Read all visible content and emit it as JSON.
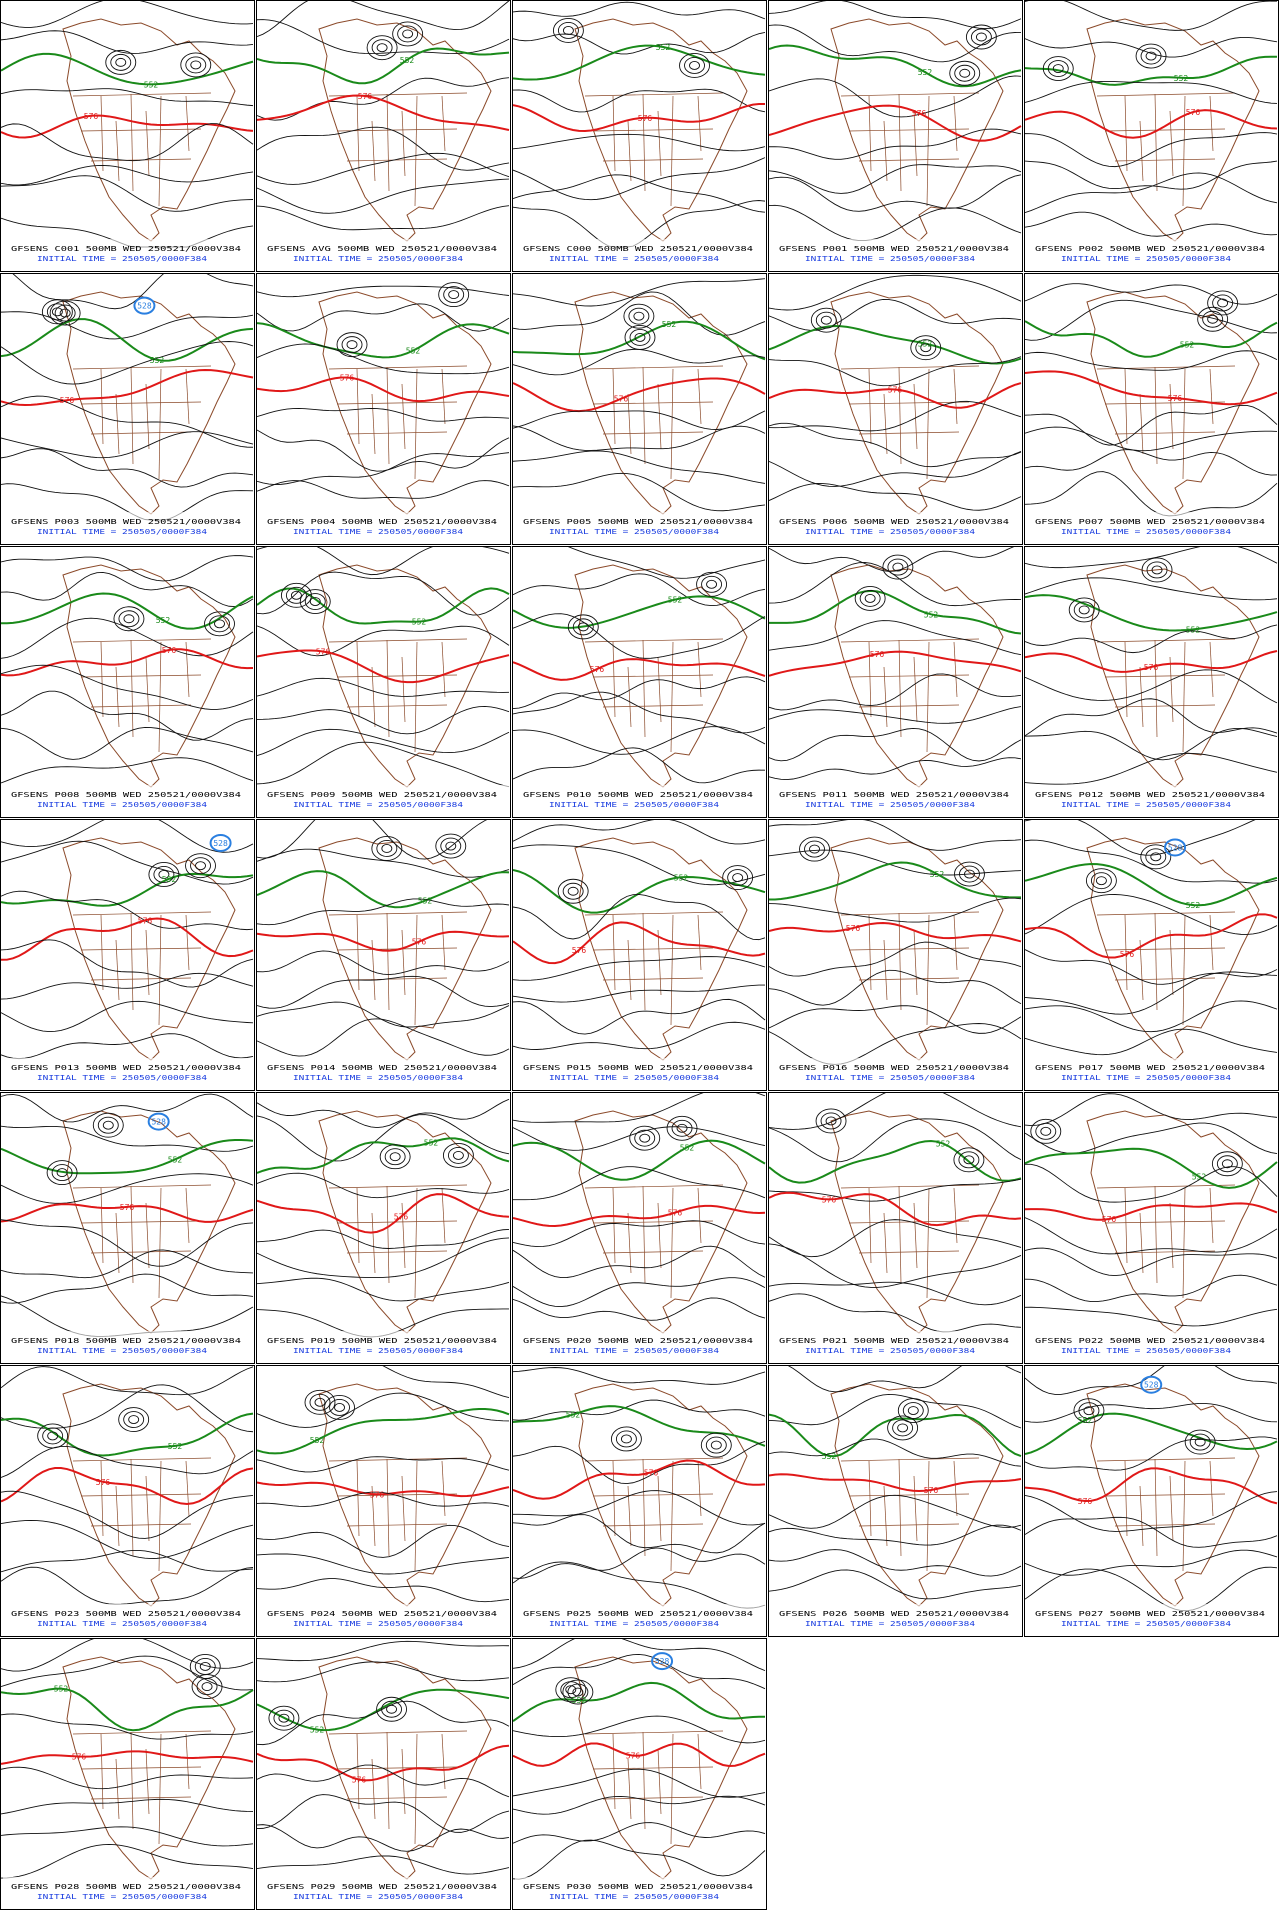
{
  "panels": [
    {
      "title": "GFSENS C001 500MB WED 250521/0000V384",
      "initial_time": "INITIAL TIME = 250505/0000F384",
      "contour_labels": [
        "552",
        "576"
      ]
    },
    {
      "title": "GFSENS AVG 500MB WED 250521/0000V384",
      "initial_time": "INITIAL TIME = 250505/0000F384",
      "contour_labels": [
        "552",
        "576"
      ]
    },
    {
      "title": "GFSENS C000 500MB WED 250521/0000V384",
      "initial_time": "INITIAL TIME = 250505/0000F384",
      "contour_labels": [
        "552",
        "576"
      ]
    },
    {
      "title": "GFSENS P001 500MB WED 250521/0000V384",
      "initial_time": "INITIAL TIME = 250505/0000F384",
      "contour_labels": [
        "552",
        "576"
      ]
    },
    {
      "title": "GFSENS P002 500MB WED 250521/0000V384",
      "initial_time": "INITIAL TIME = 250505/0000F384",
      "contour_labels": [
        "552",
        "576"
      ]
    },
    {
      "title": "GFSENS P003 500MB WED 250521/0000V384",
      "initial_time": "INITIAL TIME = 250505/0000F384",
      "contour_labels": [
        "552",
        "576",
        "528"
      ]
    },
    {
      "title": "GFSENS P004 500MB WED 250521/0000V384",
      "initial_time": "INITIAL TIME = 250505/0000F384",
      "contour_labels": [
        "552",
        "576"
      ]
    },
    {
      "title": "GFSENS P005 500MB WED 250521/0000V384",
      "initial_time": "INITIAL TIME = 250505/0000F384",
      "contour_labels": [
        "552",
        "576"
      ]
    },
    {
      "title": "GFSENS P006 500MB WED 250521/0000V384",
      "initial_time": "INITIAL TIME = 250505/0000F384",
      "contour_labels": [
        "552",
        "576"
      ]
    },
    {
      "title": "GFSENS P007 500MB WED 250521/0000V384",
      "initial_time": "INITIAL TIME = 250505/0000F384",
      "contour_labels": [
        "552",
        "576"
      ]
    },
    {
      "title": "GFSENS P008 500MB WED 250521/0000V384",
      "initial_time": "INITIAL TIME = 250505/0000F384",
      "contour_labels": [
        "552",
        "576"
      ]
    },
    {
      "title": "GFSENS P009 500MB WED 250521/0000V384",
      "initial_time": "INITIAL TIME = 250505/0000F384",
      "contour_labels": [
        "552",
        "576"
      ]
    },
    {
      "title": "GFSENS P010 500MB WED 250521/0000V384",
      "initial_time": "INITIAL TIME = 250505/0000F384",
      "contour_labels": [
        "552",
        "576"
      ]
    },
    {
      "title": "GFSENS P011 500MB WED 250521/0000V384",
      "initial_time": "INITIAL TIME = 250505/0000F384",
      "contour_labels": [
        "552",
        "576"
      ]
    },
    {
      "title": "GFSENS P012 500MB WED 250521/0000V384",
      "initial_time": "INITIAL TIME = 250505/0000F384",
      "contour_labels": [
        "552",
        "576"
      ]
    },
    {
      "title": "GFSENS P013 500MB WED 250521/0000V384",
      "initial_time": "INITIAL TIME = 250505/0000F384",
      "contour_labels": [
        "552",
        "576",
        "528"
      ]
    },
    {
      "title": "GFSENS P014 500MB WED 250521/0000V384",
      "initial_time": "INITIAL TIME = 250505/0000F384",
      "contour_labels": [
        "552",
        "576"
      ]
    },
    {
      "title": "GFSENS P015 500MB WED 250521/0000V384",
      "initial_time": "INITIAL TIME = 250505/0000F384",
      "contour_labels": [
        "552",
        "576"
      ]
    },
    {
      "title": "GFSENS P016 500MB WED 250521/0000V384",
      "initial_time": "INITIAL TIME = 250505/0000F384",
      "contour_labels": [
        "552",
        "576"
      ]
    },
    {
      "title": "GFSENS P017 500MB WED 250521/0000V384",
      "initial_time": "INITIAL TIME = 250505/0000F384",
      "contour_labels": [
        "552",
        "576",
        "528"
      ]
    },
    {
      "title": "GFSENS P018 500MB WED 250521/0000V384",
      "initial_time": "INITIAL TIME = 250505/0000F384",
      "contour_labels": [
        "552",
        "576",
        "528"
      ]
    },
    {
      "title": "GFSENS P019 500MB WED 250521/0000V384",
      "initial_time": "INITIAL TIME = 250505/0000F384",
      "contour_labels": [
        "552",
        "576"
      ]
    },
    {
      "title": "GFSENS P020 500MB WED 250521/0000V384",
      "initial_time": "INITIAL TIME = 250505/0000F384",
      "contour_labels": [
        "552",
        "576"
      ]
    },
    {
      "title": "GFSENS P021 500MB WED 250521/0000V384",
      "initial_time": "INITIAL TIME = 250505/0000F384",
      "contour_labels": [
        "552",
        "576"
      ]
    },
    {
      "title": "GFSENS P022 500MB WED 250521/0000V384",
      "initial_time": "INITIAL TIME = 250505/0000F384",
      "contour_labels": [
        "552",
        "576"
      ]
    },
    {
      "title": "GFSENS P023 500MB WED 250521/0000V384",
      "initial_time": "INITIAL TIME = 250505/0000F384",
      "contour_labels": [
        "552",
        "576"
      ]
    },
    {
      "title": "GFSENS P024 500MB WED 250521/0000V384",
      "initial_time": "INITIAL TIME = 250505/0000F384",
      "contour_labels": [
        "552",
        "576"
      ]
    },
    {
      "title": "GFSENS P025 500MB WED 250521/0000V384",
      "initial_time": "INITIAL TIME = 250505/0000F384",
      "contour_labels": [
        "552",
        "576"
      ]
    },
    {
      "title": "GFSENS P026 500MB WED 250521/0000V384",
      "initial_time": "INITIAL TIME = 250505/0000F384",
      "contour_labels": [
        "552",
        "576"
      ]
    },
    {
      "title": "GFSENS P027 500MB WED 250521/0000V384",
      "initial_time": "INITIAL TIME = 250505/0000F384",
      "contour_labels": [
        "552",
        "576",
        "528"
      ]
    },
    {
      "title": "GFSENS P028 500MB WED 250521/0000V384",
      "initial_time": "INITIAL TIME = 250505/0000F384",
      "contour_labels": [
        "552",
        "576"
      ]
    },
    {
      "title": "GFSENS P029 500MB WED 250521/0000V384",
      "initial_time": "INITIAL TIME = 250505/0000F384",
      "contour_labels": [
        "552",
        "576"
      ]
    },
    {
      "title": "GFSENS P030 500MB WED 250521/0000V384",
      "initial_time": "INITIAL TIME = 250505/0000F384",
      "contour_labels": [
        "552",
        "576",
        "528"
      ]
    }
  ]
}
